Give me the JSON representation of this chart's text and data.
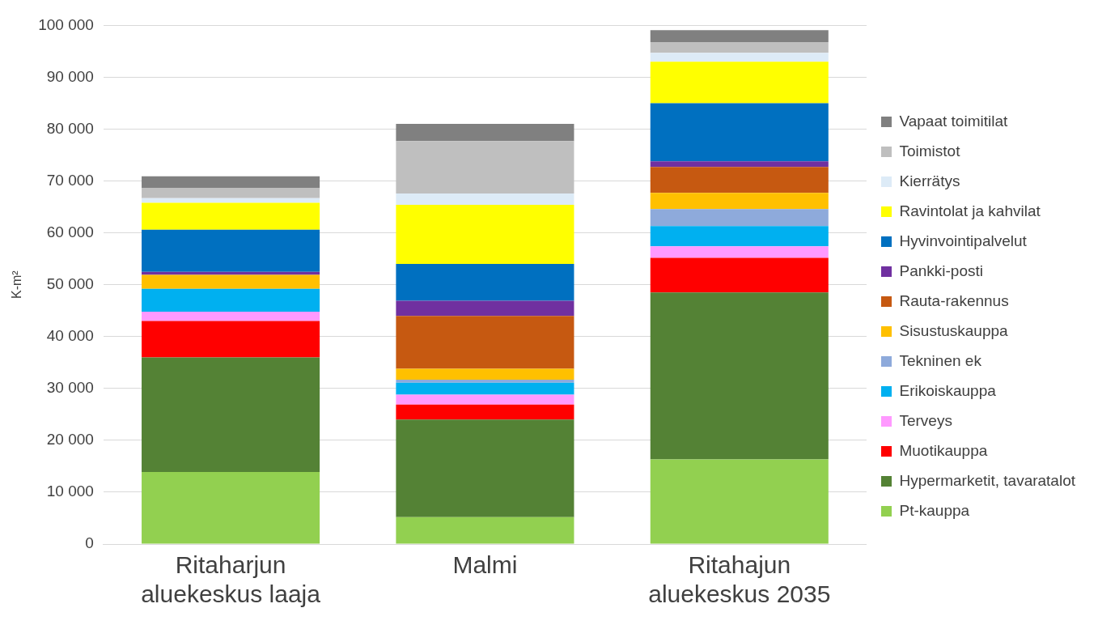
{
  "chart_data": {
    "type": "bar",
    "stacked": true,
    "ylabel": "K-m²",
    "categories": [
      "Ritaharjun aluekeskus laaja",
      "Malmi",
      "Ritahajun aluekeskus 2035"
    ],
    "ylim": [
      0,
      100000
    ],
    "yticks": [
      {
        "value": 0,
        "label": "0"
      },
      {
        "value": 10000,
        "label": "10 000"
      },
      {
        "value": 20000,
        "label": "20 000"
      },
      {
        "value": 30000,
        "label": "30 000"
      },
      {
        "value": 40000,
        "label": "40 000"
      },
      {
        "value": 50000,
        "label": "50 000"
      },
      {
        "value": 60000,
        "label": "60 000"
      },
      {
        "value": 70000,
        "label": "70 000"
      },
      {
        "value": 80000,
        "label": "80 000"
      },
      {
        "value": 90000,
        "label": "90 000"
      },
      {
        "value": 100000,
        "label": "100 000"
      }
    ],
    "grid": "y",
    "legend": "right",
    "series": [
      {
        "name": "Pt-kauppa",
        "color": "#92d050",
        "values": [
          13900,
          5200,
          16300
        ]
      },
      {
        "name": "Hypermarketit, tavaratalot",
        "color": "#548235",
        "values": [
          22100,
          18800,
          32200
        ]
      },
      {
        "name": "Muotikauppa",
        "color": "#ff0000",
        "values": [
          7000,
          2900,
          6700
        ]
      },
      {
        "name": "Terveys",
        "color": "#ff99ff",
        "values": [
          1800,
          1900,
          2200
        ]
      },
      {
        "name": "Erikoiskauppa",
        "color": "#00b0f0",
        "values": [
          4400,
          2300,
          3900
        ]
      },
      {
        "name": "Tekninen ek",
        "color": "#8eaadb",
        "values": [
          0,
          600,
          3300
        ]
      },
      {
        "name": "Sisustuskauppa",
        "color": "#ffc000",
        "values": [
          2700,
          2100,
          3100
        ]
      },
      {
        "name": "Rauta-rakennus",
        "color": "#c65911",
        "values": [
          0,
          10200,
          5000
        ]
      },
      {
        "name": "Pankki-posti",
        "color": "#7030a0",
        "values": [
          600,
          2900,
          1100
        ]
      },
      {
        "name": "Hyvinvointipalvelut",
        "color": "#0070c0",
        "values": [
          8100,
          7100,
          11200
        ]
      },
      {
        "name": "Ravintolat ja kahvilat",
        "color": "#ffff00",
        "values": [
          5200,
          11400,
          8000
        ]
      },
      {
        "name": "Kierrätys",
        "color": "#ddebf7",
        "values": [
          900,
          2200,
          1700
        ]
      },
      {
        "name": "Toimistot",
        "color": "#bfbfbf",
        "values": [
          1900,
          10100,
          2100
        ]
      },
      {
        "name": "Vapaat toimitilat",
        "color": "#808080",
        "values": [
          2300,
          3300,
          2300
        ]
      }
    ]
  }
}
